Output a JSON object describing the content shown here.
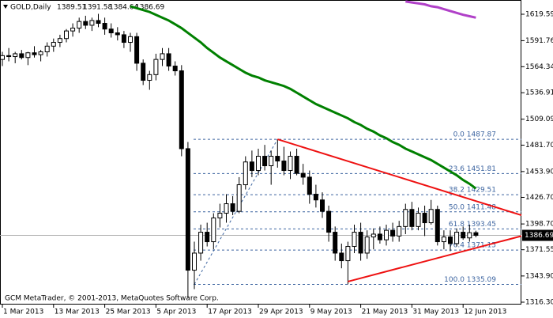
{
  "chart_data": {
    "type": "candlestick",
    "symbol": "GOLD,Daily",
    "quote": [
      1389.51,
      1391.58,
      1384.64,
      1386.69
    ],
    "credit": "GCM MetaTrader, © 2001-2013, MetaQuotes Software Corp.",
    "categories": [
      "1 Mar 2013",
      null,
      null,
      null,
      null,
      null,
      null,
      null,
      "13 Mar 2013",
      null,
      null,
      null,
      null,
      null,
      null,
      null,
      "25 Mar 2013",
      null,
      null,
      null,
      null,
      null,
      null,
      null,
      "5 Apr 2013",
      null,
      null,
      null,
      null,
      null,
      null,
      null,
      "17 Apr 2013",
      null,
      null,
      null,
      null,
      null,
      null,
      null,
      "29 Apr 2013",
      null,
      null,
      null,
      null,
      null,
      null,
      null,
      "9 May 2013",
      null,
      null,
      null,
      null,
      null,
      null,
      null,
      "21 May 2013",
      null,
      null,
      null,
      null,
      null,
      null,
      null,
      "31 May 2013",
      null,
      null,
      null,
      null,
      null,
      null,
      null,
      "12 Jun 2013",
      null,
      null
    ],
    "open": [
      1572,
      1576,
      1575,
      1578,
      1574,
      1579,
      1577,
      1580,
      1586,
      1590,
      1594,
      1602,
      1605,
      1612,
      1608,
      1613,
      1610,
      1604,
      1600,
      1598,
      1590,
      1596,
      1568,
      1550,
      1556,
      1572,
      1578,
      1565,
      1560,
      1478,
      1350,
      1368,
      1390,
      1380,
      1405,
      1410,
      1420,
      1412,
      1440,
      1464,
      1455,
      1470,
      1460,
      1470,
      1465,
      1455,
      1470,
      1452,
      1448,
      1430,
      1424,
      1412,
      1390,
      1368,
      1360,
      1375,
      1390,
      1368,
      1385,
      1388,
      1382,
      1392,
      1386,
      1396,
      1414,
      1396,
      1410,
      1400,
      1414,
      1380,
      1385,
      1378,
      1390,
      1384,
      1389.51
    ],
    "high": [
      1580,
      1584,
      1580,
      1582,
      1580,
      1586,
      1582,
      1590,
      1594,
      1598,
      1604,
      1610,
      1616,
      1618,
      1616,
      1620,
      1616,
      1610,
      1606,
      1602,
      1600,
      1600,
      1572,
      1560,
      1578,
      1584,
      1584,
      1570,
      1566,
      1485,
      1380,
      1398,
      1400,
      1410,
      1420,
      1430,
      1428,
      1448,
      1470,
      1476,
      1478,
      1482,
      1476,
      1487.87,
      1480,
      1475,
      1478,
      1462,
      1455,
      1440,
      1432,
      1418,
      1396,
      1378,
      1380,
      1398,
      1400,
      1392,
      1394,
      1396,
      1398,
      1400,
      1402,
      1420,
      1422,
      1416,
      1418,
      1424,
      1418,
      1392,
      1392,
      1394,
      1396,
      1398,
      1391.58
    ],
    "low": [
      1565,
      1570,
      1568,
      1572,
      1566,
      1574,
      1570,
      1575,
      1580,
      1585,
      1590,
      1596,
      1600,
      1604,
      1602,
      1606,
      1598,
      1595,
      1592,
      1584,
      1580,
      1560,
      1545,
      1540,
      1550,
      1565,
      1560,
      1555,
      1470,
      1321,
      1330,
      1360,
      1375,
      1372,
      1395,
      1400,
      1408,
      1410,
      1435,
      1448,
      1450,
      1455,
      1440,
      1458,
      1450,
      1446,
      1450,
      1440,
      1420,
      1416,
      1405,
      1380,
      1360,
      1352,
      1335.09,
      1368,
      1360,
      1362,
      1372,
      1378,
      1376,
      1380,
      1380,
      1388,
      1392,
      1392,
      1386,
      1398,
      1376,
      1372,
      1370,
      1375,
      1382,
      1380,
      1384.64
    ],
    "close": [
      1576,
      1575,
      1578,
      1574,
      1579,
      1577,
      1580,
      1586,
      1590,
      1594,
      1602,
      1605,
      1612,
      1608,
      1613,
      1610,
      1604,
      1600,
      1598,
      1590,
      1596,
      1568,
      1550,
      1556,
      1572,
      1578,
      1565,
      1560,
      1478,
      1350,
      1368,
      1390,
      1380,
      1405,
      1410,
      1420,
      1412,
      1440,
      1464,
      1455,
      1470,
      1460,
      1470,
      1465,
      1455,
      1470,
      1452,
      1448,
      1430,
      1424,
      1412,
      1390,
      1368,
      1360,
      1375,
      1390,
      1368,
      1385,
      1388,
      1382,
      1392,
      1386,
      1396,
      1414,
      1396,
      1410,
      1400,
      1414,
      1380,
      1385,
      1378,
      1390,
      1384,
      1389.51,
      1386.69
    ],
    "moving_averages": [
      {
        "color": "#008000",
        "values": [
          null,
          null,
          null,
          null,
          null,
          null,
          null,
          null,
          null,
          null,
          null,
          null,
          null,
          null,
          null,
          null,
          null,
          null,
          null,
          null,
          1628,
          1626,
          1624,
          1622,
          1619,
          1616,
          1613,
          1609,
          1605,
          1600,
          1595,
          1590,
          1584,
          1579,
          1574,
          1570,
          1566,
          1562,
          1558,
          1555,
          1553,
          1550,
          1548,
          1546,
          1544,
          1541,
          1537,
          1533,
          1529,
          1525,
          1522,
          1519,
          1516,
          1513,
          1510,
          1506,
          1503,
          1499,
          1496,
          1492,
          1489,
          1485,
          1482,
          1478,
          1475,
          1472,
          1469,
          1466,
          1462,
          1458,
          1454,
          1450,
          1445,
          1441,
          1436
        ]
      },
      {
        "color": "#b040c8",
        "values": [
          null,
          null,
          null,
          null,
          null,
          null,
          null,
          null,
          null,
          null,
          null,
          null,
          null,
          null,
          null,
          null,
          null,
          null,
          null,
          null,
          null,
          null,
          null,
          null,
          null,
          null,
          null,
          null,
          null,
          null,
          null,
          null,
          null,
          null,
          null,
          null,
          null,
          null,
          null,
          null,
          null,
          null,
          null,
          null,
          null,
          null,
          null,
          null,
          null,
          null,
          null,
          null,
          null,
          null,
          null,
          null,
          null,
          null,
          null,
          null,
          null,
          null,
          null,
          1633,
          1632,
          1631,
          1630,
          1628,
          1627,
          1625,
          1623,
          1621,
          1619,
          1617.5,
          1616
        ]
      }
    ],
    "fib_levels": [
      {
        "value": 1487.87,
        "label": "0.0 1487.87"
      },
      {
        "value": 1451.81,
        "label": "23.6 1451.81"
      },
      {
        "value": 1429.51,
        "label": "38.2 1429.51"
      },
      {
        "value": 1411.48,
        "label": "50.0 1411.48"
      },
      {
        "value": 1393.45,
        "label": "61.8 1393.45"
      },
      {
        "value": 1371.15,
        "label": "76.4 1371.15"
      },
      {
        "value": 1335.09,
        "label": "100.0 1335.09"
      }
    ],
    "fib_color": "#3c64a0",
    "trendlines": [
      {
        "color": "#ee1111",
        "values": [
          1487.87,
          1407.9
        ]
      },
      {
        "color": "#ee1111",
        "values": [
          1338,
          1386
        ]
      }
    ],
    "last_price": 1386.69,
    "ylim": [
      1313.8,
      1634.6
    ],
    "yticks": [
      1619.59,
      1591.76,
      1564.34,
      1536.91,
      1509.09,
      {
        "value": 1481.7,
        "label": "1481.70"
      },
      {
        "value": 1453.9,
        "label": "1453.90"
      },
      {
        "value": 1426.7,
        "label": "1426.70"
      },
      {
        "value": 1398.7,
        "label": "1398.70"
      },
      1371.55,
      {
        "value": 1343.9,
        "label": "1343.90"
      },
      {
        "value": 1316.3,
        "label": "1316.30"
      }
    ]
  }
}
